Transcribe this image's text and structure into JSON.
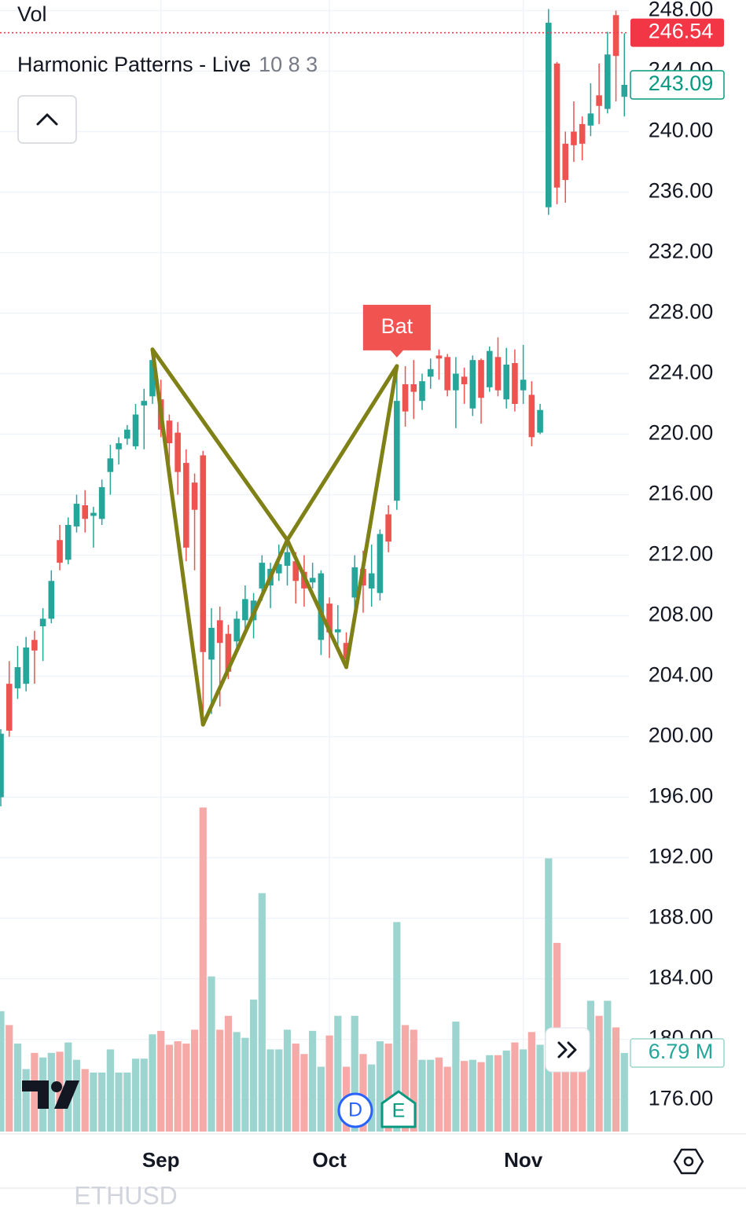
{
  "chart_data": {
    "type": "candlestick",
    "volume_title": "Vol",
    "title": "Harmonic Patterns - Live",
    "indicator_params": "10 8 3",
    "symbol": "ETHUSD",
    "categories": [
      null,
      null,
      null,
      null,
      null,
      null,
      null,
      null,
      null,
      null,
      null,
      null,
      null,
      null,
      null,
      null,
      null,
      null,
      null,
      "Sep",
      null,
      null,
      null,
      null,
      null,
      null,
      null,
      null,
      null,
      null,
      null,
      null,
      null,
      null,
      null,
      null,
      null,
      null,
      null,
      "Oct",
      null,
      null,
      null,
      null,
      null,
      null,
      null,
      null,
      null,
      null,
      null,
      null,
      null,
      null,
      null,
      null,
      null,
      null,
      null,
      null,
      null,
      null,
      "Nov",
      null,
      null,
      null,
      null,
      null,
      null,
      null,
      null,
      null,
      null,
      null,
      null
    ],
    "open": [
      196,
      203.5,
      203.2,
      203.5,
      206.4,
      207.3,
      207.8,
      213,
      211.7,
      213.9,
      215.3,
      214.6,
      214.4,
      217.5,
      219,
      219.7,
      219.2,
      221.9,
      222.5,
      222.3,
      220.9,
      220.1,
      218.1,
      216.8,
      218.6,
      205.1,
      207.7,
      206.8,
      206.3,
      207.7,
      207.7,
      209.8,
      210,
      210.8,
      211.3,
      211.6,
      210.9,
      210.2,
      206.4,
      208.8,
      206.9,
      206.2,
      209.2,
      211.1,
      209.8,
      209.5,
      214.7,
      215.6,
      223.3,
      223.3,
      222.2,
      223.8,
      225.2,
      225.1,
      222.9,
      223.8,
      221.7,
      224.9,
      223.1,
      225.1,
      222.3,
      224.7,
      222.9,
      222.6,
      220.1,
      235,
      244.5,
      239.2,
      240,
      240.5,
      240.4,
      242.4,
      241.5,
      247.7,
      242.3
    ],
    "high": [
      200.5,
      205,
      206,
      206.6,
      207,
      208.5,
      211,
      214,
      214.5,
      216,
      216.3,
      215.2,
      217,
      219.3,
      219.8,
      220.6,
      222,
      223,
      225.6,
      223.6,
      221.3,
      220.8,
      219,
      217.4,
      218.9,
      208.5,
      208.6,
      207.4,
      208.3,
      210,
      209.5,
      212,
      211.5,
      212.7,
      213,
      212.2,
      212,
      211.5,
      211,
      209.2,
      208.7,
      206.9,
      212,
      212.3,
      212.7,
      213.7,
      215.3,
      224.4,
      224.5,
      224.9,
      224,
      225,
      225.6,
      225.3,
      225.1,
      224.4,
      225.2,
      225,
      225.8,
      226.4,
      225.7,
      225.6,
      225.9,
      223.5,
      222,
      248.1,
      244.6,
      240,
      242,
      241,
      243.2,
      244.5,
      246.6,
      248,
      246.5
    ],
    "low": [
      195.4,
      200,
      202.5,
      203,
      203.5,
      205,
      207.5,
      211,
      211.4,
      213.5,
      213.5,
      212.5,
      214,
      216,
      218,
      219.3,
      219,
      219,
      222,
      219.8,
      218,
      216,
      211.6,
      211,
      200.8,
      201.5,
      202,
      203.8,
      205.5,
      207,
      206.5,
      209,
      208.5,
      210.3,
      210,
      208.8,
      208.6,
      209.8,
      205.4,
      205.2,
      205.7,
      204.6,
      208,
      208.2,
      208.6,
      209,
      212.2,
      215,
      220.5,
      221,
      221.6,
      223,
      223.6,
      222.5,
      220.4,
      222,
      221.2,
      220.7,
      222.8,
      222.5,
      221.7,
      221.5,
      222,
      219.2,
      220,
      234.5,
      235.2,
      235.3,
      238,
      238.1,
      239.7,
      240.5,
      241.2,
      242,
      241
    ],
    "close": [
      200.2,
      200.4,
      204.6,
      205.9,
      205.7,
      207.8,
      210.3,
      211.5,
      214,
      215.4,
      214.4,
      214.8,
      216.5,
      218.4,
      219.4,
      220.3,
      221.3,
      222.2,
      224.9,
      220.3,
      219.4,
      217.5,
      212.5,
      215,
      205.6,
      207.2,
      206.2,
      204.3,
      207.8,
      209.1,
      209,
      211.5,
      211.1,
      211.4,
      212.2,
      210.3,
      209.8,
      210.5,
      210.8,
      206.9,
      207.1,
      205.1,
      211.2,
      210,
      210.8,
      213.4,
      212.9,
      222.2,
      221.5,
      222.8,
      223.5,
      224.3,
      225,
      222.9,
      224,
      223.3,
      224.9,
      222.4,
      225.5,
      222.9,
      224.6,
      222,
      223.6,
      219.8,
      221.6,
      247.2,
      236.3,
      236.8,
      239.1,
      239.2,
      241.2,
      241.7,
      245.1,
      245,
      243.09
    ],
    "colors": {
      "up": "#26a69a",
      "down": "#ef5350"
    },
    "volume": {
      "values": [
        10.4,
        9.2,
        7.6,
        5.4,
        6.8,
        6.4,
        6.8,
        6.9,
        7.7,
        6.2,
        5.4,
        5.1,
        5.1,
        7.1,
        5.1,
        5.1,
        6.3,
        6.3,
        8.4,
        8.7,
        7.5,
        7.8,
        7.6,
        8.8,
        28,
        13.4,
        8.8,
        10,
        8.6,
        8.1,
        11.4,
        20.6,
        7.1,
        7.1,
        8.8,
        7.6,
        6.7,
        8.7,
        5.6,
        8.3,
        10,
        5.6,
        10,
        6.7,
        5.8,
        7.8,
        7.6,
        18.1,
        9.2,
        8.8,
        6.2,
        6.2,
        6.4,
        5.6,
        9.5,
        6.1,
        6.2,
        6,
        6.6,
        6.6,
        7,
        7.7,
        7.1,
        8.6,
        7.5,
        23.6,
        16.3,
        6.4,
        6.4,
        6.4,
        11.3,
        10,
        11.3,
        9,
        6.79
      ],
      "colors": {
        "up": "#9cd5cf",
        "down": "#f5aaa8"
      },
      "last_label": {
        "value": 6.79,
        "label": "6.79 M"
      }
    },
    "ylim": [
      173.9,
      248.7
    ],
    "yticks": [
      {
        "value": 176,
        "label": "176.00"
      },
      {
        "value": 180,
        "label": "180.00"
      },
      {
        "value": 184,
        "label": "184.00"
      },
      {
        "value": 188,
        "label": "188.00"
      },
      {
        "value": 192,
        "label": "192.00"
      },
      {
        "value": 196,
        "label": "196.00"
      },
      {
        "value": 200,
        "label": "200.00"
      },
      {
        "value": 204,
        "label": "204.00"
      },
      {
        "value": 208,
        "label": "208.00"
      },
      {
        "value": 212,
        "label": "212.00"
      },
      {
        "value": 216,
        "label": "216.00"
      },
      {
        "value": 220,
        "label": "220.00"
      },
      {
        "value": 224,
        "label": "224.00"
      },
      {
        "value": 228,
        "label": "228.00"
      },
      {
        "value": 232,
        "label": "232.00"
      },
      {
        "value": 236,
        "label": "236.00"
      },
      {
        "value": 240,
        "label": "240.00"
      },
      {
        "value": 244,
        "label": "244.00"
      },
      {
        "value": 248,
        "label": "248.00"
      }
    ],
    "grid": true,
    "price_labels": [
      {
        "value": 246.54,
        "color": "#f23645",
        "style": "filled"
      },
      {
        "value": 243.09,
        "color": "#089981",
        "style": "outline"
      }
    ],
    "pattern": {
      "label": "Bat",
      "color": "#7f8016",
      "label_color": "#f05350",
      "x": [
        18,
        24,
        34,
        41,
        47
      ],
      "y": [
        225.6,
        200.8,
        213,
        204.6,
        224.5
      ]
    },
    "badges": [
      "D",
      "E"
    ]
  }
}
